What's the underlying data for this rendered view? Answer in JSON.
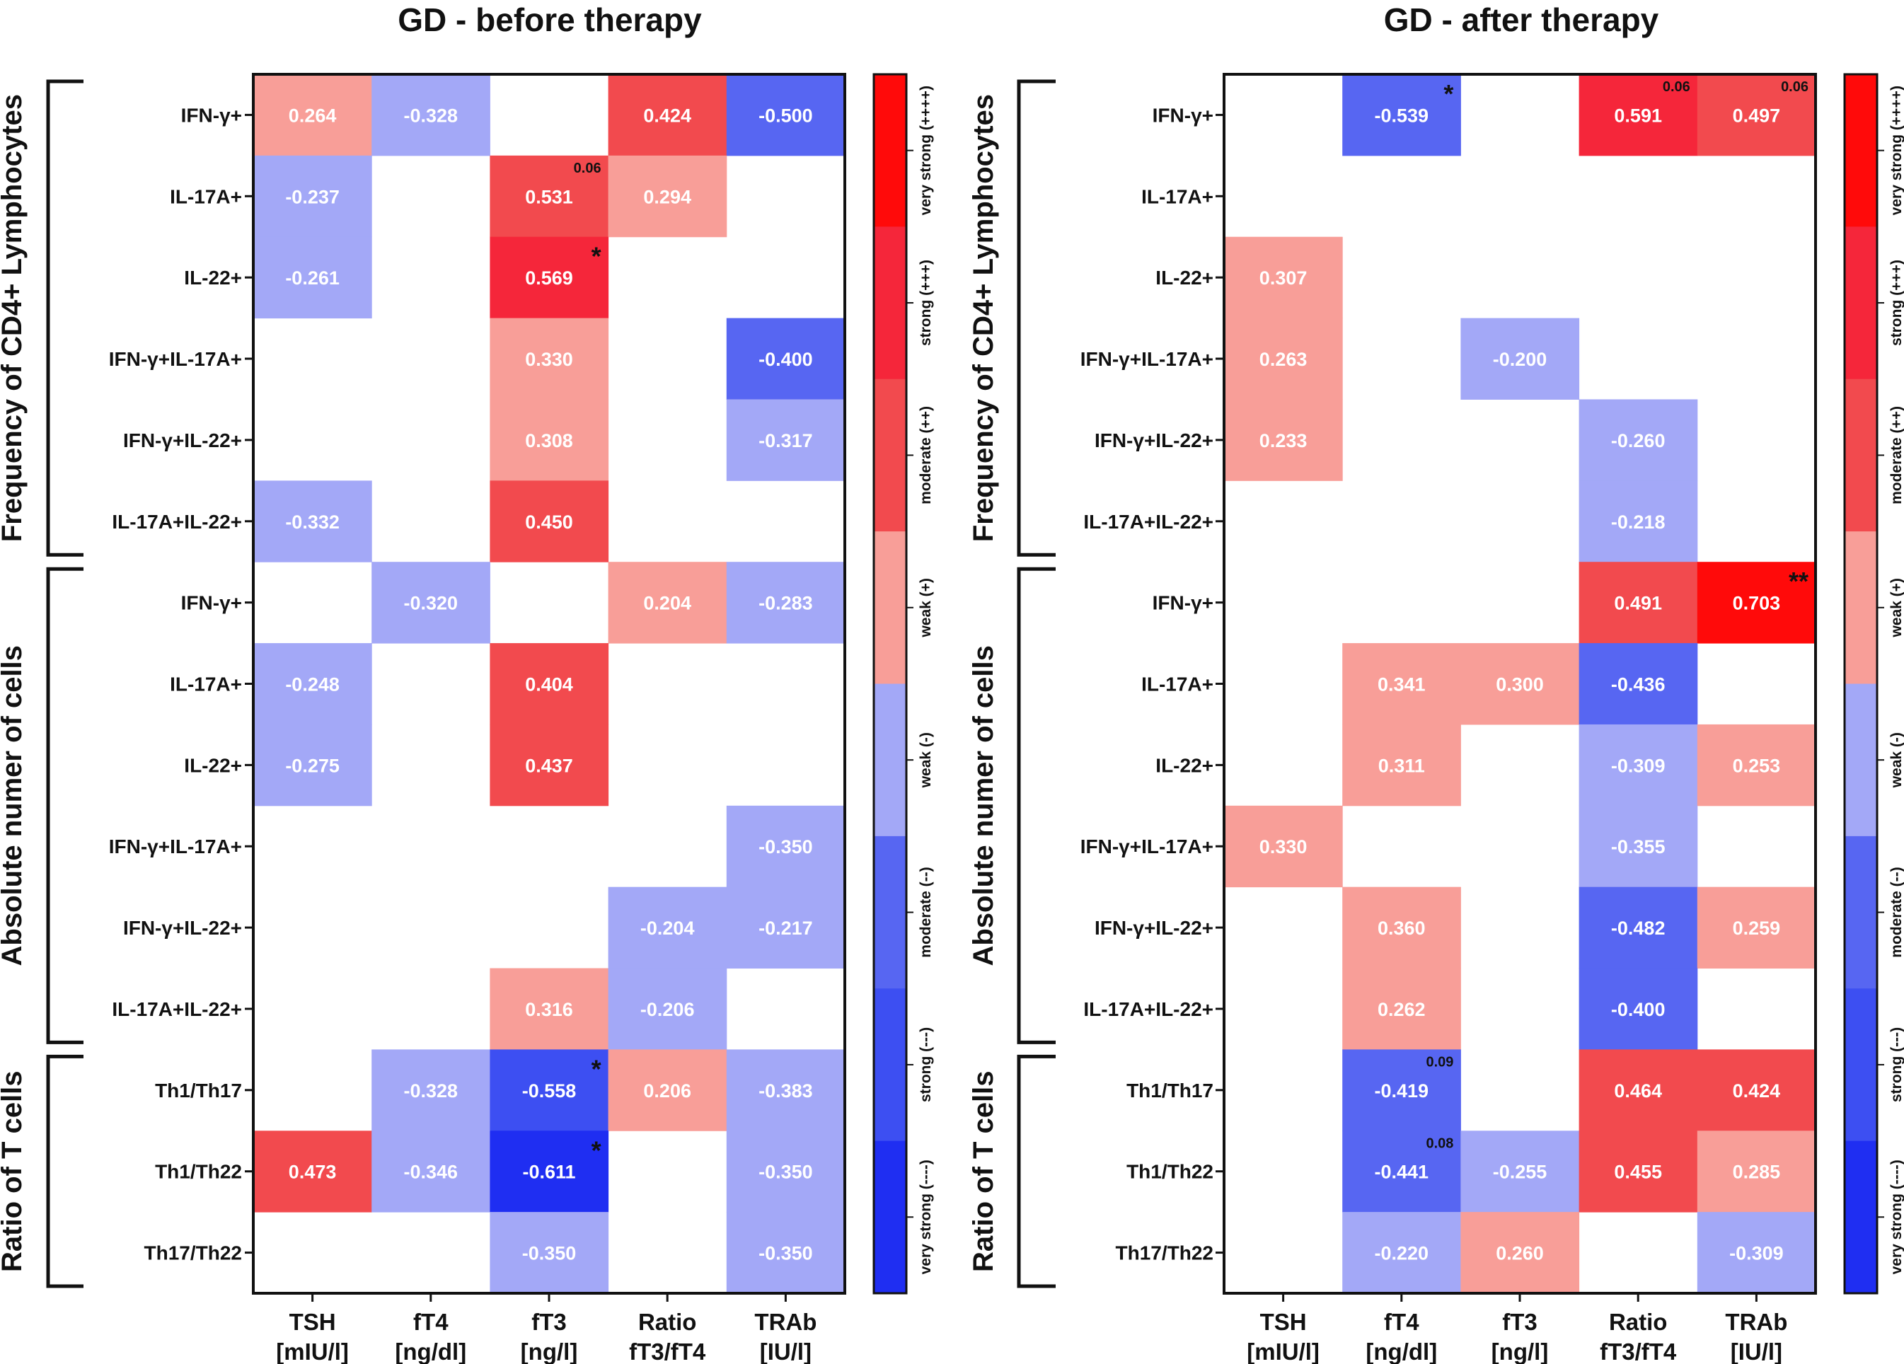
{
  "chart_data": [
    {
      "type": "heatmap",
      "title": "GD - before therapy",
      "columns": [
        "TSH [mIU/l]",
        "fT4 [ng/dl]",
        "fT3 [ng/l]",
        "Ratio fT3/fT4",
        "TRAb [IU/l]"
      ],
      "column_lines": [
        [
          "TSH",
          "[mIU/l]"
        ],
        [
          "fT4",
          "[ng/dl]"
        ],
        [
          "fT3",
          "[ng/l]"
        ],
        [
          "Ratio",
          "fT3/fT4"
        ],
        [
          "TRAb",
          "[IU/l]"
        ]
      ],
      "rows": [
        "IFN-γ+",
        "IL-17A+",
        "IL-22+",
        "IFN-γ+IL-17A+",
        "IFN-γ+IL-22+",
        "IL-17A+IL-22+",
        "IFN-γ+",
        "IL-17A+",
        "IL-22+",
        "IFN-γ+IL-17A+",
        "IFN-γ+IL-22+",
        "IL-17A+IL-22+",
        "Th1/Th17",
        "Th1/Th22",
        "Th17/Th22"
      ],
      "groups": [
        {
          "label": "Frequency of CD4+ Lymphocytes",
          "start": 0,
          "end": 5
        },
        {
          "label": "Absolute numer of cells",
          "start": 6,
          "end": 11
        },
        {
          "label": "Ratio of T cells",
          "start": 12,
          "end": 14
        }
      ],
      "values": [
        [
          0.264,
          -0.328,
          null,
          0.424,
          -0.5
        ],
        [
          -0.237,
          null,
          0.531,
          0.294,
          null
        ],
        [
          -0.261,
          null,
          0.569,
          null,
          null
        ],
        [
          null,
          null,
          0.33,
          null,
          -0.4
        ],
        [
          null,
          null,
          0.308,
          null,
          -0.317
        ],
        [
          -0.332,
          null,
          0.45,
          null,
          null
        ],
        [
          null,
          -0.32,
          null,
          0.204,
          -0.283
        ],
        [
          -0.248,
          null,
          0.404,
          null,
          null
        ],
        [
          -0.275,
          null,
          0.437,
          null,
          null
        ],
        [
          null,
          null,
          null,
          null,
          -0.35
        ],
        [
          null,
          null,
          null,
          -0.204,
          -0.217
        ],
        [
          null,
          null,
          0.316,
          -0.206,
          null
        ],
        [
          null,
          -0.328,
          -0.558,
          0.206,
          -0.383
        ],
        [
          0.473,
          -0.346,
          -0.611,
          null,
          -0.35
        ],
        [
          null,
          null,
          -0.35,
          null,
          -0.35
        ]
      ],
      "annotations": [
        {
          "row": 1,
          "col": 2,
          "text": "0.06"
        },
        {
          "row": 2,
          "col": 2,
          "text": "*"
        },
        {
          "row": 12,
          "col": 2,
          "text": "*"
        },
        {
          "row": 13,
          "col": 2,
          "text": "*"
        }
      ]
    },
    {
      "type": "heatmap",
      "title": "GD - after therapy",
      "columns": [
        "TSH [mIU/l]",
        "fT4 [ng/dl]",
        "fT3 [ng/l]",
        "Ratio fT3/fT4",
        "TRAb [IU/l]"
      ],
      "column_lines": [
        [
          "TSH",
          "[mIU/l]"
        ],
        [
          "fT4",
          "[ng/dl]"
        ],
        [
          "fT3",
          "[ng/l]"
        ],
        [
          "Ratio",
          "fT3/fT4"
        ],
        [
          "TRAb",
          "[IU/l]"
        ]
      ],
      "rows": [
        "IFN-γ+",
        "IL-17A+",
        "IL-22+",
        "IFN-γ+IL-17A+",
        "IFN-γ+IL-22+",
        "IL-17A+IL-22+",
        "IFN-γ+",
        "IL-17A+",
        "IL-22+",
        "IFN-γ+IL-17A+",
        "IFN-γ+IL-22+",
        "IL-17A+IL-22+",
        "Th1/Th17",
        "Th1/Th22",
        "Th17/Th22"
      ],
      "groups": [
        {
          "label": "Frequency of CD4+ Lymphocytes",
          "start": 0,
          "end": 5
        },
        {
          "label": "Absolute numer of cells",
          "start": 6,
          "end": 11
        },
        {
          "label": "Ratio of T cells",
          "start": 12,
          "end": 14
        }
      ],
      "values": [
        [
          null,
          -0.539,
          null,
          0.591,
          0.497
        ],
        [
          null,
          null,
          null,
          null,
          null
        ],
        [
          0.307,
          null,
          null,
          null,
          null
        ],
        [
          0.263,
          null,
          -0.2,
          null,
          null
        ],
        [
          0.233,
          null,
          null,
          -0.26,
          null
        ],
        [
          null,
          null,
          null,
          -0.218,
          null
        ],
        [
          null,
          null,
          null,
          0.491,
          0.703
        ],
        [
          null,
          0.341,
          0.3,
          -0.436,
          null
        ],
        [
          null,
          0.311,
          null,
          -0.309,
          0.253
        ],
        [
          0.33,
          null,
          null,
          -0.355,
          null
        ],
        [
          null,
          0.36,
          null,
          -0.482,
          0.259
        ],
        [
          null,
          0.262,
          null,
          -0.4,
          null
        ],
        [
          null,
          -0.419,
          null,
          0.464,
          0.424
        ],
        [
          null,
          -0.441,
          -0.255,
          0.455,
          0.285
        ],
        [
          null,
          -0.22,
          0.26,
          null,
          -0.309
        ]
      ],
      "annotations": [
        {
          "row": 0,
          "col": 1,
          "text": "*"
        },
        {
          "row": 0,
          "col": 3,
          "text": "0.06"
        },
        {
          "row": 0,
          "col": 4,
          "text": "0.06"
        },
        {
          "row": 6,
          "col": 4,
          "text": "**"
        },
        {
          "row": 12,
          "col": 1,
          "text": "0.09"
        },
        {
          "row": 13,
          "col": 1,
          "text": "0.08"
        }
      ]
    }
  ],
  "legend": {
    "levels": [
      {
        "label": "very strong (++++)",
        "color": "#FF0A0A"
      },
      {
        "label": "strong (+++)",
        "color": "#F5263A"
      },
      {
        "label": "moderate (++)",
        "color": "#F24A4E"
      },
      {
        "label": "weak (+)",
        "color": "#F89E98"
      },
      {
        "label": "weak (-)",
        "color": "#A3A8F7"
      },
      {
        "label": "moderate (--)",
        "color": "#5766F2"
      },
      {
        "label": "strong (---)",
        "color": "#3D4FF2"
      },
      {
        "label": "very strong (----)",
        "color": "#1F2EF2"
      }
    ]
  }
}
